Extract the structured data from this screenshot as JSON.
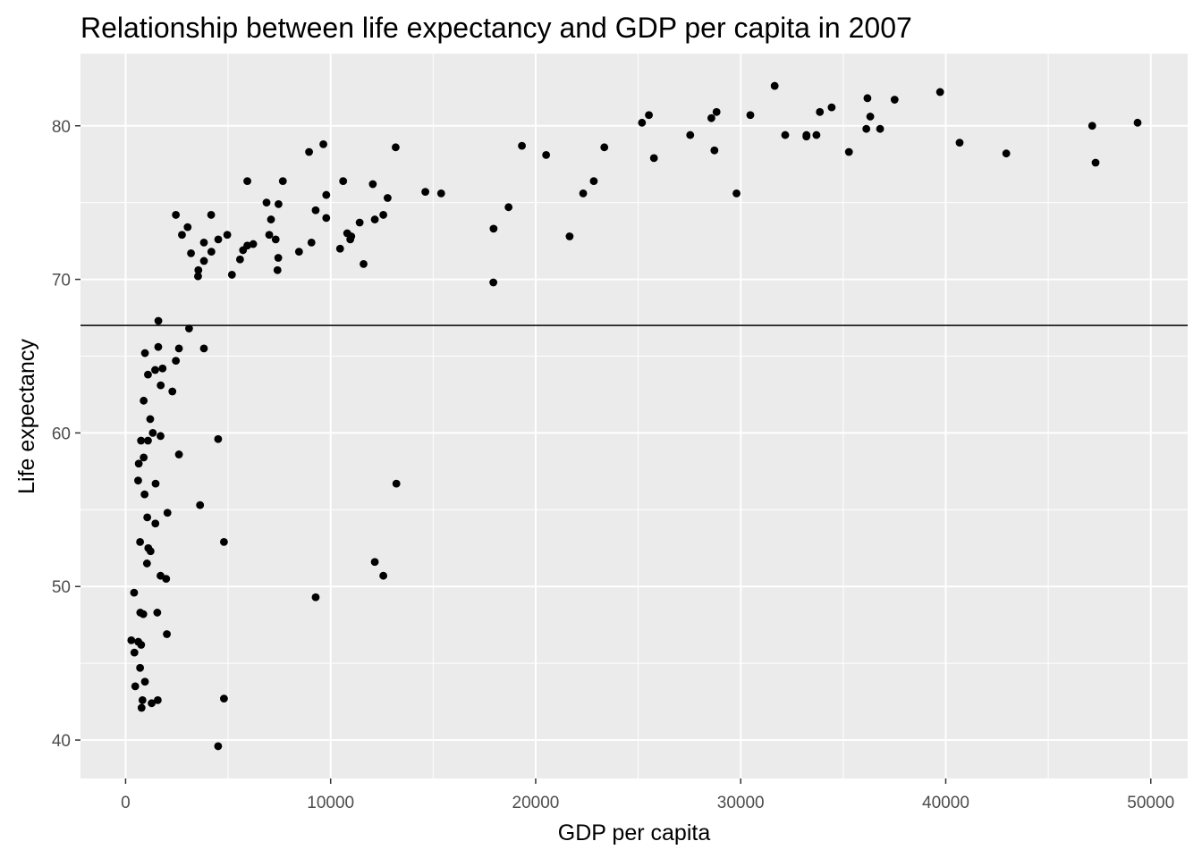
{
  "chart_data": {
    "type": "scatter",
    "title": "Relationship between life expectancy and GDP per capita in 2007",
    "xlabel": "GDP per capita",
    "ylabel": "Life expectancy",
    "xlim": [
      -2200,
      51800
    ],
    "ylim": [
      37.5,
      84.7
    ],
    "x_ticks": [
      0,
      10000,
      20000,
      30000,
      40000,
      50000
    ],
    "x_tick_labels": [
      "0",
      "10000",
      "20000",
      "30000",
      "40000",
      "50000"
    ],
    "y_ticks": [
      40,
      50,
      60,
      70,
      80
    ],
    "y_tick_labels": [
      "40",
      "50",
      "60",
      "70",
      "80"
    ],
    "reference_line_y": 67.0,
    "grid": true,
    "legend": "none",
    "colors": {
      "panel": "#EBEBEB",
      "grid": "#FFFFFF",
      "point": "#000000",
      "tick": "#4D4D4D"
    },
    "points": [
      [
        31656,
        82.6
      ],
      [
        39725,
        82.2
      ],
      [
        36181,
        81.8
      ],
      [
        37506,
        81.7
      ],
      [
        34435,
        81.2
      ],
      [
        33860,
        80.9
      ],
      [
        28822,
        80.9
      ],
      [
        30470,
        80.7
      ],
      [
        25523,
        80.7
      ],
      [
        36319,
        80.6
      ],
      [
        28569,
        80.5
      ],
      [
        25185,
        80.2
      ],
      [
        49357,
        80.2
      ],
      [
        47143,
        80.0
      ],
      [
        36126,
        79.8
      ],
      [
        36798,
        79.8
      ],
      [
        27538,
        79.4
      ],
      [
        32170,
        79.4
      ],
      [
        33207,
        79.4
      ],
      [
        33693,
        79.4
      ],
      [
        33203,
        79.3
      ],
      [
        40676,
        78.9
      ],
      [
        19329,
        78.7
      ],
      [
        9645,
        78.8
      ],
      [
        23348,
        78.6
      ],
      [
        13172,
        78.6
      ],
      [
        28718,
        78.4
      ],
      [
        35278,
        78.3
      ],
      [
        42952,
        78.2
      ],
      [
        8948,
        78.3
      ],
      [
        20510,
        78.1
      ],
      [
        25768,
        77.9
      ],
      [
        47307,
        77.6
      ],
      [
        7670,
        76.4
      ],
      [
        10611,
        76.4
      ],
      [
        5937,
        76.4
      ],
      [
        12057,
        76.2
      ],
      [
        14619,
        75.7
      ],
      [
        15390,
        75.6
      ],
      [
        22316,
        75.6
      ],
      [
        29796,
        75.6
      ],
      [
        9787,
        75.5
      ],
      [
        12779,
        75.3
      ],
      [
        22834,
        76.4
      ],
      [
        6873,
        75.0
      ],
      [
        7458,
        74.9
      ],
      [
        18678,
        74.7
      ],
      [
        9269,
        74.5
      ],
      [
        2452,
        74.2
      ],
      [
        4173,
        74.2
      ],
      [
        12570,
        74.2
      ],
      [
        7092,
        73.9
      ],
      [
        9786,
        74.0
      ],
      [
        12154,
        73.9
      ],
      [
        11415,
        73.7
      ],
      [
        3025,
        73.4
      ],
      [
        17946,
        73.3
      ],
      [
        10808,
        73.0
      ],
      [
        4959,
        72.9
      ],
      [
        2749,
        72.9
      ],
      [
        21655,
        72.8
      ],
      [
        11006,
        72.8
      ],
      [
        7006,
        72.9
      ],
      [
        10957,
        72.6
      ],
      [
        7320,
        72.6
      ],
      [
        4519,
        72.6
      ],
      [
        3820,
        72.4
      ],
      [
        6223,
        72.3
      ],
      [
        9065,
        72.4
      ],
      [
        5937,
        72.2
      ],
      [
        10461,
        72.0
      ],
      [
        5728,
        71.9
      ],
      [
        8458,
        71.8
      ],
      [
        4184,
        71.8
      ],
      [
        3190,
        71.7
      ],
      [
        5581,
        71.3
      ],
      [
        7446,
        71.4
      ],
      [
        3822,
        71.2
      ],
      [
        11606,
        71.0
      ],
      [
        3548,
        70.6
      ],
      [
        7408,
        70.6
      ],
      [
        5186,
        70.3
      ],
      [
        3533,
        70.2
      ],
      [
        17936,
        69.8
      ],
      [
        1598,
        67.3
      ],
      [
        3095,
        66.8
      ],
      [
        1593,
        65.6
      ],
      [
        2602,
        65.5
      ],
      [
        3820,
        65.5
      ],
      [
        944,
        65.2
      ],
      [
        2452,
        64.7
      ],
      [
        1803,
        64.2
      ],
      [
        1441,
        64.1
      ],
      [
        1091,
        63.8
      ],
      [
        1713,
        63.1
      ],
      [
        2281,
        62.7
      ],
      [
        882,
        62.1
      ],
      [
        1201,
        60.9
      ],
      [
        1327,
        60.0
      ],
      [
        1704,
        59.8
      ],
      [
        752,
        59.5
      ],
      [
        1091,
        59.5
      ],
      [
        4513,
        59.6
      ],
      [
        2602,
        58.6
      ],
      [
        883,
        58.4
      ],
      [
        641,
        58.0
      ],
      [
        611,
        56.9
      ],
      [
        1463,
        56.7
      ],
      [
        13206,
        56.7
      ],
      [
        926,
        56.0
      ],
      [
        3632,
        55.3
      ],
      [
        2042,
        54.8
      ],
      [
        1056,
        54.5
      ],
      [
        1452,
        54.1
      ],
      [
        706,
        52.9
      ],
      [
        4797,
        52.9
      ],
      [
        1107,
        52.5
      ],
      [
        1217,
        52.3
      ],
      [
        1042,
        51.5
      ],
      [
        12154,
        51.6
      ],
      [
        1704,
        50.7
      ],
      [
        12570,
        50.7
      ],
      [
        1977,
        50.5
      ],
      [
        9270,
        49.3
      ],
      [
        415,
        49.6
      ],
      [
        716,
        48.3
      ],
      [
        863,
        48.2
      ],
      [
        1545,
        48.3
      ],
      [
        2013,
        46.9
      ],
      [
        278,
        46.5
      ],
      [
        619,
        46.4
      ],
      [
        759,
        46.2
      ],
      [
        430,
        45.7
      ],
      [
        706,
        44.7
      ],
      [
        943,
        43.8
      ],
      [
        470,
        43.5
      ],
      [
        824,
        42.6
      ],
      [
        1271,
        42.4
      ],
      [
        1569,
        42.6
      ],
      [
        4797,
        42.7
      ],
      [
        779,
        42.1
      ],
      [
        4513,
        39.6
      ]
    ]
  }
}
